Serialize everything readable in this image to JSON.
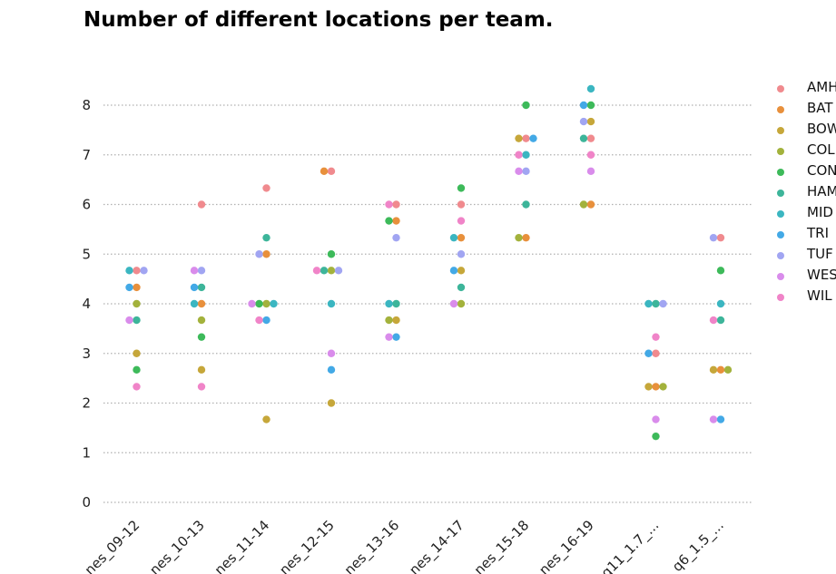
{
  "chart_data": {
    "type": "scatter",
    "subtype": "swarm",
    "title": "Number of different locations per team.",
    "xlabel": "",
    "ylabel": "",
    "ylim": [
      0,
      8.6
    ],
    "yticks": [
      0,
      1,
      2,
      3,
      4,
      5,
      6,
      7,
      8
    ],
    "grid": "horizontal-dotted",
    "legend_position": "right",
    "categories": [
      "nes_09-12",
      "nes_10-13",
      "nes_11-14",
      "nes_12-15",
      "nes_13-16",
      "nes_14-17",
      "nes_15-18",
      "nes_16-19",
      "q11_1.7_...",
      "q6_1.5_..."
    ],
    "series": [
      {
        "name": "AMH",
        "color": "#f08a8e",
        "points": [
          [
            0,
            4.67
          ],
          [
            1,
            6.0
          ],
          [
            2,
            6.33
          ],
          [
            3,
            6.67
          ],
          [
            4,
            6.0
          ],
          [
            5,
            6.0
          ],
          [
            6,
            7.33
          ],
          [
            7,
            7.33
          ],
          [
            8,
            3.0
          ],
          [
            9,
            5.33
          ]
        ]
      },
      {
        "name": "BAT",
        "color": "#e8903c",
        "points": [
          [
            0,
            4.33
          ],
          [
            1,
            4.0
          ],
          [
            2,
            5.0
          ],
          [
            3,
            6.67
          ],
          [
            4,
            5.67
          ],
          [
            5,
            5.33
          ],
          [
            6,
            5.33
          ],
          [
            7,
            6.0
          ],
          [
            8,
            2.33
          ],
          [
            9,
            2.67
          ]
        ]
      },
      {
        "name": "BOW",
        "color": "#c6a73a",
        "points": [
          [
            0,
            3.0
          ],
          [
            1,
            2.67
          ],
          [
            2,
            1.67
          ],
          [
            3,
            2.0
          ],
          [
            4,
            3.67
          ],
          [
            5,
            4.67
          ],
          [
            6,
            7.33
          ],
          [
            7,
            7.67
          ],
          [
            8,
            2.33
          ],
          [
            9,
            2.67
          ]
        ]
      },
      {
        "name": "COL",
        "color": "#a3b23c",
        "points": [
          [
            0,
            4.0
          ],
          [
            1,
            3.67
          ],
          [
            2,
            4.0
          ],
          [
            3,
            4.67
          ],
          [
            4,
            3.67
          ],
          [
            5,
            4.0
          ],
          [
            6,
            5.33
          ],
          [
            7,
            6.0
          ],
          [
            8,
            2.33
          ],
          [
            9,
            2.67
          ]
        ]
      },
      {
        "name": "CON",
        "color": "#3dba5a",
        "points": [
          [
            0,
            2.67
          ],
          [
            1,
            3.33
          ],
          [
            2,
            4.0
          ],
          [
            3,
            5.0
          ],
          [
            4,
            5.67
          ],
          [
            5,
            6.33
          ],
          [
            6,
            8.0
          ],
          [
            7,
            8.0
          ],
          [
            8,
            1.33
          ],
          [
            9,
            4.67
          ]
        ]
      },
      {
        "name": "HAM",
        "color": "#3db59a",
        "points": [
          [
            0,
            3.67
          ],
          [
            1,
            4.33
          ],
          [
            2,
            5.33
          ],
          [
            3,
            4.67
          ],
          [
            4,
            4.0
          ],
          [
            5,
            4.33
          ],
          [
            6,
            6.0
          ],
          [
            7,
            7.33
          ],
          [
            8,
            4.0
          ],
          [
            9,
            3.67
          ]
        ]
      },
      {
        "name": "MID",
        "color": "#3bb6c1",
        "points": [
          [
            0,
            4.67
          ],
          [
            1,
            4.0
          ],
          [
            2,
            4.0
          ],
          [
            3,
            4.0
          ],
          [
            4,
            4.0
          ],
          [
            5,
            5.33
          ],
          [
            6,
            7.0
          ],
          [
            7,
            8.33
          ],
          [
            8,
            4.0
          ],
          [
            9,
            4.0
          ]
        ]
      },
      {
        "name": "TRI",
        "color": "#43a9e6",
        "points": [
          [
            0,
            4.33
          ],
          [
            1,
            4.33
          ],
          [
            2,
            3.67
          ],
          [
            3,
            2.67
          ],
          [
            4,
            3.33
          ],
          [
            5,
            4.67
          ],
          [
            6,
            7.33
          ],
          [
            7,
            8.0
          ],
          [
            8,
            3.0
          ],
          [
            9,
            1.67
          ]
        ]
      },
      {
        "name": "TUF",
        "color": "#a1a5f2",
        "points": [
          [
            0,
            4.67
          ],
          [
            1,
            4.67
          ],
          [
            2,
            5.0
          ],
          [
            3,
            4.67
          ],
          [
            4,
            5.33
          ],
          [
            5,
            5.0
          ],
          [
            6,
            6.67
          ],
          [
            7,
            7.67
          ],
          [
            8,
            4.0
          ],
          [
            9,
            5.33
          ]
        ]
      },
      {
        "name": "WES",
        "color": "#d98ceb",
        "points": [
          [
            0,
            3.67
          ],
          [
            1,
            4.67
          ],
          [
            2,
            4.0
          ],
          [
            3,
            3.0
          ],
          [
            4,
            3.33
          ],
          [
            5,
            4.0
          ],
          [
            6,
            6.67
          ],
          [
            7,
            6.67
          ],
          [
            8,
            1.67
          ],
          [
            9,
            1.67
          ]
        ]
      },
      {
        "name": "WIL",
        "color": "#f084c8",
        "points": [
          [
            0,
            2.33
          ],
          [
            1,
            2.33
          ],
          [
            2,
            3.67
          ],
          [
            3,
            4.67
          ],
          [
            4,
            6.0
          ],
          [
            5,
            5.67
          ],
          [
            6,
            7.0
          ],
          [
            7,
            7.0
          ],
          [
            8,
            3.33
          ],
          [
            9,
            3.67
          ]
        ]
      }
    ]
  }
}
